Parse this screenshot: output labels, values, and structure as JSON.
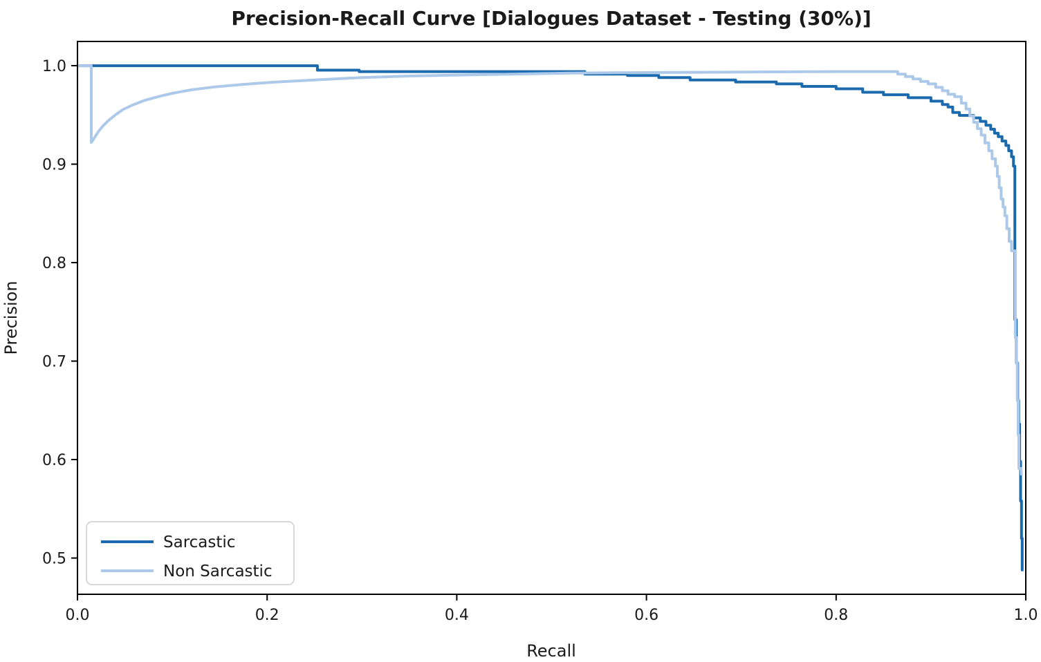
{
  "title": "Precision-Recall Curve [Dialogues Dataset - Testing (30%)]",
  "colors": {
    "sarcastic_line": "#1b6aad",
    "non_sarcastic_line": "#adc9ea",
    "axis": "#000000",
    "text": "#1a1a1a",
    "legend_border": "#cccccc",
    "background": "#ffffff"
  },
  "legend": {
    "position": "lower-left",
    "items": [
      {
        "label": "Sarcastic",
        "color": "#1b6aad"
      },
      {
        "label": "Non Sarcastic",
        "color": "#adc9ea"
      }
    ]
  },
  "chart_data": {
    "type": "line",
    "title": "Precision-Recall Curve [Dialogues Dataset - Testing (30%)]",
    "xlabel": "Recall",
    "ylabel": "Precision",
    "xlim": [
      0.0,
      1.0
    ],
    "ylim": [
      0.4632,
      1.0246
    ],
    "xticks": [
      0.0,
      0.2,
      0.4,
      0.6,
      0.8,
      1.0
    ],
    "yticks": [
      0.5,
      0.6,
      0.7,
      0.8,
      0.9,
      1.0
    ],
    "grid": false,
    "legend_position": "lower-left",
    "series": [
      {
        "name": "Sarcastic",
        "color": "#1b6aad",
        "points": [
          [
            0.0,
            1.0
          ],
          [
            0.253,
            1.0
          ],
          [
            0.253,
            0.9955
          ],
          [
            0.297,
            0.9955
          ],
          [
            0.297,
            0.994
          ],
          [
            0.535,
            0.994
          ],
          [
            0.535,
            0.9915
          ],
          [
            0.58,
            0.9915
          ],
          [
            0.58,
            0.99
          ],
          [
            0.613,
            0.99
          ],
          [
            0.613,
            0.988
          ],
          [
            0.646,
            0.988
          ],
          [
            0.646,
            0.9855
          ],
          [
            0.694,
            0.9855
          ],
          [
            0.694,
            0.9835
          ],
          [
            0.737,
            0.9835
          ],
          [
            0.737,
            0.9815
          ],
          [
            0.764,
            0.9815
          ],
          [
            0.764,
            0.979
          ],
          [
            0.8,
            0.979
          ],
          [
            0.8,
            0.9765
          ],
          [
            0.828,
            0.9765
          ],
          [
            0.828,
            0.973
          ],
          [
            0.85,
            0.973
          ],
          [
            0.85,
            0.9705
          ],
          [
            0.876,
            0.9705
          ],
          [
            0.876,
            0.9675
          ],
          [
            0.9,
            0.9675
          ],
          [
            0.9,
            0.964
          ],
          [
            0.912,
            0.964
          ],
          [
            0.912,
            0.9605
          ],
          [
            0.918,
            0.9605
          ],
          [
            0.918,
            0.958
          ],
          [
            0.923,
            0.958
          ],
          [
            0.923,
            0.9525
          ],
          [
            0.93,
            0.9525
          ],
          [
            0.93,
            0.9495
          ],
          [
            0.945,
            0.9495
          ],
          [
            0.945,
            0.947
          ],
          [
            0.952,
            0.947
          ],
          [
            0.952,
            0.9435
          ],
          [
            0.958,
            0.9435
          ],
          [
            0.958,
            0.9395
          ],
          [
            0.963,
            0.9395
          ],
          [
            0.963,
            0.9355
          ],
          [
            0.967,
            0.9355
          ],
          [
            0.967,
            0.9315
          ],
          [
            0.971,
            0.9315
          ],
          [
            0.971,
            0.928
          ],
          [
            0.975,
            0.928
          ],
          [
            0.975,
            0.9235
          ],
          [
            0.979,
            0.9235
          ],
          [
            0.979,
            0.919
          ],
          [
            0.982,
            0.919
          ],
          [
            0.982,
            0.9135
          ],
          [
            0.985,
            0.9135
          ],
          [
            0.985,
            0.9075
          ],
          [
            0.987,
            0.9075
          ],
          [
            0.987,
            0.898
          ],
          [
            0.9885,
            0.898
          ],
          [
            0.9885,
            0.742
          ],
          [
            0.99,
            0.742
          ],
          [
            0.99,
            0.698
          ],
          [
            0.9915,
            0.698
          ],
          [
            0.9915,
            0.66
          ],
          [
            0.9925,
            0.66
          ],
          [
            0.9925,
            0.636
          ],
          [
            0.9935,
            0.636
          ],
          [
            0.9935,
            0.598
          ],
          [
            0.9945,
            0.598
          ],
          [
            0.9945,
            0.558
          ],
          [
            0.9955,
            0.558
          ],
          [
            0.9955,
            0.52
          ],
          [
            0.9962,
            0.52
          ],
          [
            0.9962,
            0.488
          ],
          [
            0.9975,
            0.488
          ]
        ]
      },
      {
        "name": "Non Sarcastic",
        "color": "#adc9ea",
        "points": [
          [
            0.0,
            1.0
          ],
          [
            0.0146,
            1.0
          ],
          [
            0.0146,
            0.922
          ],
          [
            0.018,
            0.927
          ],
          [
            0.022,
            0.933
          ],
          [
            0.027,
            0.939
          ],
          [
            0.033,
            0.9445
          ],
          [
            0.04,
            0.95
          ],
          [
            0.048,
            0.9555
          ],
          [
            0.058,
            0.96
          ],
          [
            0.07,
            0.9645
          ],
          [
            0.085,
            0.9685
          ],
          [
            0.1,
            0.972
          ],
          [
            0.12,
            0.9755
          ],
          [
            0.145,
            0.9785
          ],
          [
            0.175,
            0.981
          ],
          [
            0.21,
            0.9835
          ],
          [
            0.25,
            0.9855
          ],
          [
            0.3,
            0.988
          ],
          [
            0.35,
            0.9895
          ],
          [
            0.4,
            0.9905
          ],
          [
            0.46,
            0.9915
          ],
          [
            0.52,
            0.9925
          ],
          [
            0.6,
            0.993
          ],
          [
            0.7,
            0.9935
          ],
          [
            0.8,
            0.994
          ],
          [
            0.865,
            0.994
          ],
          [
            0.865,
            0.9915
          ],
          [
            0.873,
            0.9915
          ],
          [
            0.873,
            0.989
          ],
          [
            0.881,
            0.989
          ],
          [
            0.881,
            0.9865
          ],
          [
            0.889,
            0.9865
          ],
          [
            0.889,
            0.984
          ],
          [
            0.897,
            0.984
          ],
          [
            0.897,
            0.9815
          ],
          [
            0.905,
            0.9815
          ],
          [
            0.905,
            0.978
          ],
          [
            0.912,
            0.978
          ],
          [
            0.912,
            0.9745
          ],
          [
            0.918,
            0.9745
          ],
          [
            0.918,
            0.971
          ],
          [
            0.925,
            0.971
          ],
          [
            0.925,
            0.9685
          ],
          [
            0.932,
            0.9685
          ],
          [
            0.932,
            0.962
          ],
          [
            0.937,
            0.962
          ],
          [
            0.937,
            0.956
          ],
          [
            0.941,
            0.956
          ],
          [
            0.941,
            0.949
          ],
          [
            0.945,
            0.949
          ],
          [
            0.945,
            0.9425
          ],
          [
            0.949,
            0.9425
          ],
          [
            0.949,
            0.936
          ],
          [
            0.953,
            0.936
          ],
          [
            0.953,
            0.9295
          ],
          [
            0.957,
            0.9295
          ],
          [
            0.957,
            0.9215
          ],
          [
            0.961,
            0.9215
          ],
          [
            0.961,
            0.9135
          ],
          [
            0.9645,
            0.9135
          ],
          [
            0.9645,
            0.9055
          ],
          [
            0.968,
            0.9055
          ],
          [
            0.968,
            0.898
          ],
          [
            0.97,
            0.898
          ],
          [
            0.97,
            0.8875
          ],
          [
            0.972,
            0.8875
          ],
          [
            0.972,
            0.876
          ],
          [
            0.974,
            0.876
          ],
          [
            0.974,
            0.8645
          ],
          [
            0.976,
            0.8645
          ],
          [
            0.976,
            0.8565
          ],
          [
            0.978,
            0.8565
          ],
          [
            0.978,
            0.8475
          ],
          [
            0.98,
            0.8475
          ],
          [
            0.98,
            0.8345
          ],
          [
            0.9825,
            0.8345
          ],
          [
            0.9825,
            0.8215
          ],
          [
            0.985,
            0.8215
          ],
          [
            0.985,
            0.812
          ],
          [
            0.989,
            0.812
          ],
          [
            0.989,
            0.724
          ],
          [
            0.99,
            0.724
          ],
          [
            0.99,
            0.698
          ],
          [
            0.991,
            0.698
          ],
          [
            0.991,
            0.66
          ],
          [
            0.992,
            0.66
          ],
          [
            0.992,
            0.625
          ],
          [
            0.9927,
            0.625
          ],
          [
            0.9927,
            0.591
          ],
          [
            0.995,
            0.591
          ],
          [
            0.9955,
            0.584
          ]
        ]
      }
    ]
  }
}
